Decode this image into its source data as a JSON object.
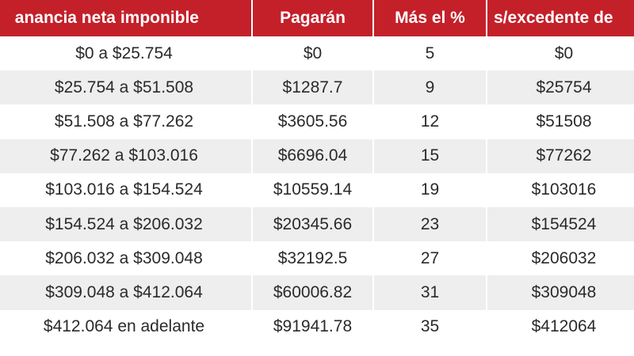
{
  "table": {
    "headers": [
      "anancia neta imponible",
      "Pagarán",
      "Más el %",
      "s/excedente de"
    ],
    "rows": [
      [
        "$0 a $25.754",
        "$0",
        "5",
        "$0"
      ],
      [
        "$25.754 a $51.508",
        "$1287.7",
        "9",
        "$25754"
      ],
      [
        "$51.508 a $77.262",
        "$3605.56",
        "12",
        "$51508"
      ],
      [
        "$77.262 a $103.016",
        "$6696.04",
        "15",
        "$77262"
      ],
      [
        "$103.016 a $154.524",
        "$10559.14",
        "19",
        "$103016"
      ],
      [
        "$154.524 a $206.032",
        "$20345.66",
        "23",
        "$154524"
      ],
      [
        "$206.032 a $309.048",
        "$32192.5",
        "27",
        "$206032"
      ],
      [
        "$309.048 a $412.064",
        "$60006.82",
        "31",
        "$309048"
      ],
      [
        "$412.064 en adelante",
        "$91941.78",
        "35",
        "$412064"
      ]
    ]
  },
  "colors": {
    "header_bg": "#c4202a",
    "header_text": "#ffffff",
    "stripe_bg": "#eeeeee",
    "text": "#2a2a2a"
  }
}
